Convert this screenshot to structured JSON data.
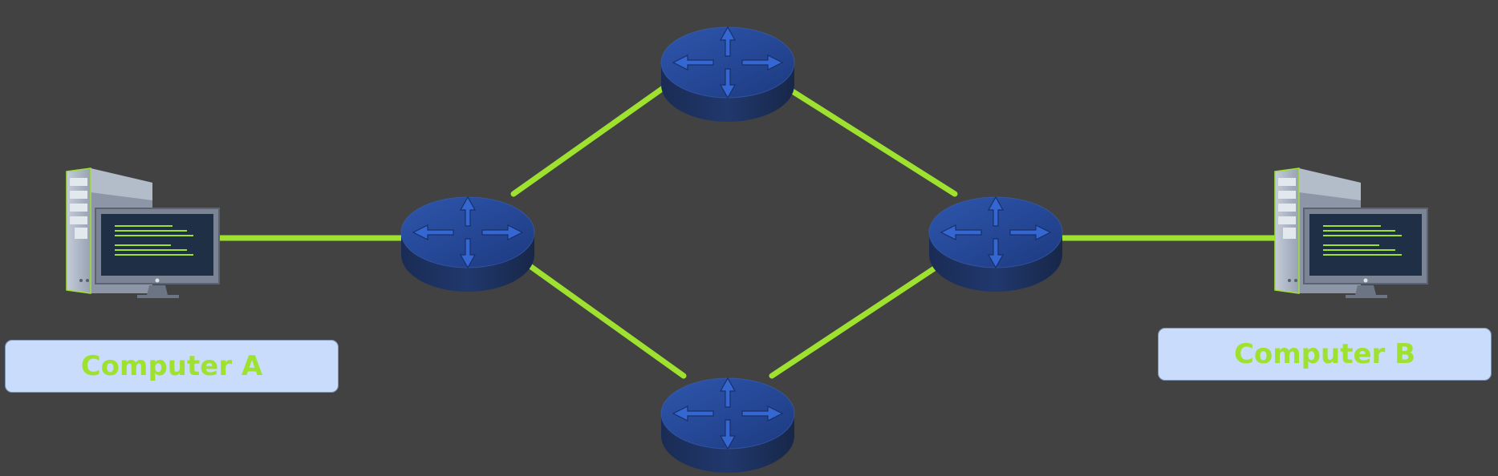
{
  "computers": [
    {
      "id": "a",
      "label": "Computer A"
    },
    {
      "id": "b",
      "label": "Computer B"
    }
  ],
  "routers": [
    "router-left",
    "router-top",
    "router-right",
    "router-bottom"
  ],
  "links": [
    [
      "computer-a",
      "router-left"
    ],
    [
      "router-left",
      "router-top"
    ],
    [
      "router-left",
      "router-bottom"
    ],
    [
      "router-top",
      "router-right"
    ],
    [
      "router-bottom",
      "router-right"
    ],
    [
      "router-right",
      "computer-b"
    ]
  ],
  "colors": {
    "background": "#424242",
    "link": "#9ee22f",
    "label_text": "#9ee22f",
    "label_box": "#c9dcfb",
    "router_top": "#24468f",
    "router_side": "#1b2f5a",
    "screen": "#1f2f45",
    "screen_lines": "#9ee22f"
  },
  "icons": {
    "computer": "desktop-computer-icon",
    "router": "network-router-icon"
  }
}
